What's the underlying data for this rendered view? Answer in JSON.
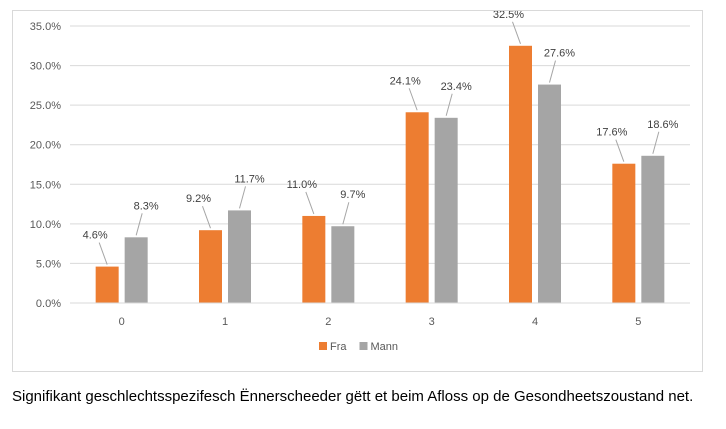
{
  "chart_data": {
    "type": "bar",
    "categories": [
      "0",
      "1",
      "2",
      "3",
      "4",
      "5"
    ],
    "series": [
      {
        "name": "Fra",
        "color": "#ED7D31",
        "values": [
          4.6,
          9.2,
          11.0,
          24.1,
          32.5,
          17.6
        ],
        "labels": [
          "4.6%",
          "9.2%",
          "11.0%",
          "24.1%",
          "32.5%",
          "17.6%"
        ]
      },
      {
        "name": "Mann",
        "color": "#A5A5A5",
        "values": [
          8.3,
          11.7,
          9.7,
          23.4,
          27.6,
          18.6
        ],
        "labels": [
          "8.3%",
          "11.7%",
          "9.7%",
          "23.4%",
          "27.6%",
          "18.6%"
        ]
      }
    ],
    "ylim": [
      0,
      35
    ],
    "yticks": [
      0,
      5,
      10,
      15,
      20,
      25,
      30,
      35
    ],
    "ytick_labels": [
      "0.0%",
      "5.0%",
      "10.0%",
      "15.0%",
      "20.0%",
      "25.0%",
      "30.0%",
      "35.0%"
    ],
    "grid": true,
    "legend_position": "bottom"
  },
  "caption": "Signifikant geschlechtsspezifesch Ënnerscheeder gëtt et beim Afloss op de Gesondheetszoustand net."
}
